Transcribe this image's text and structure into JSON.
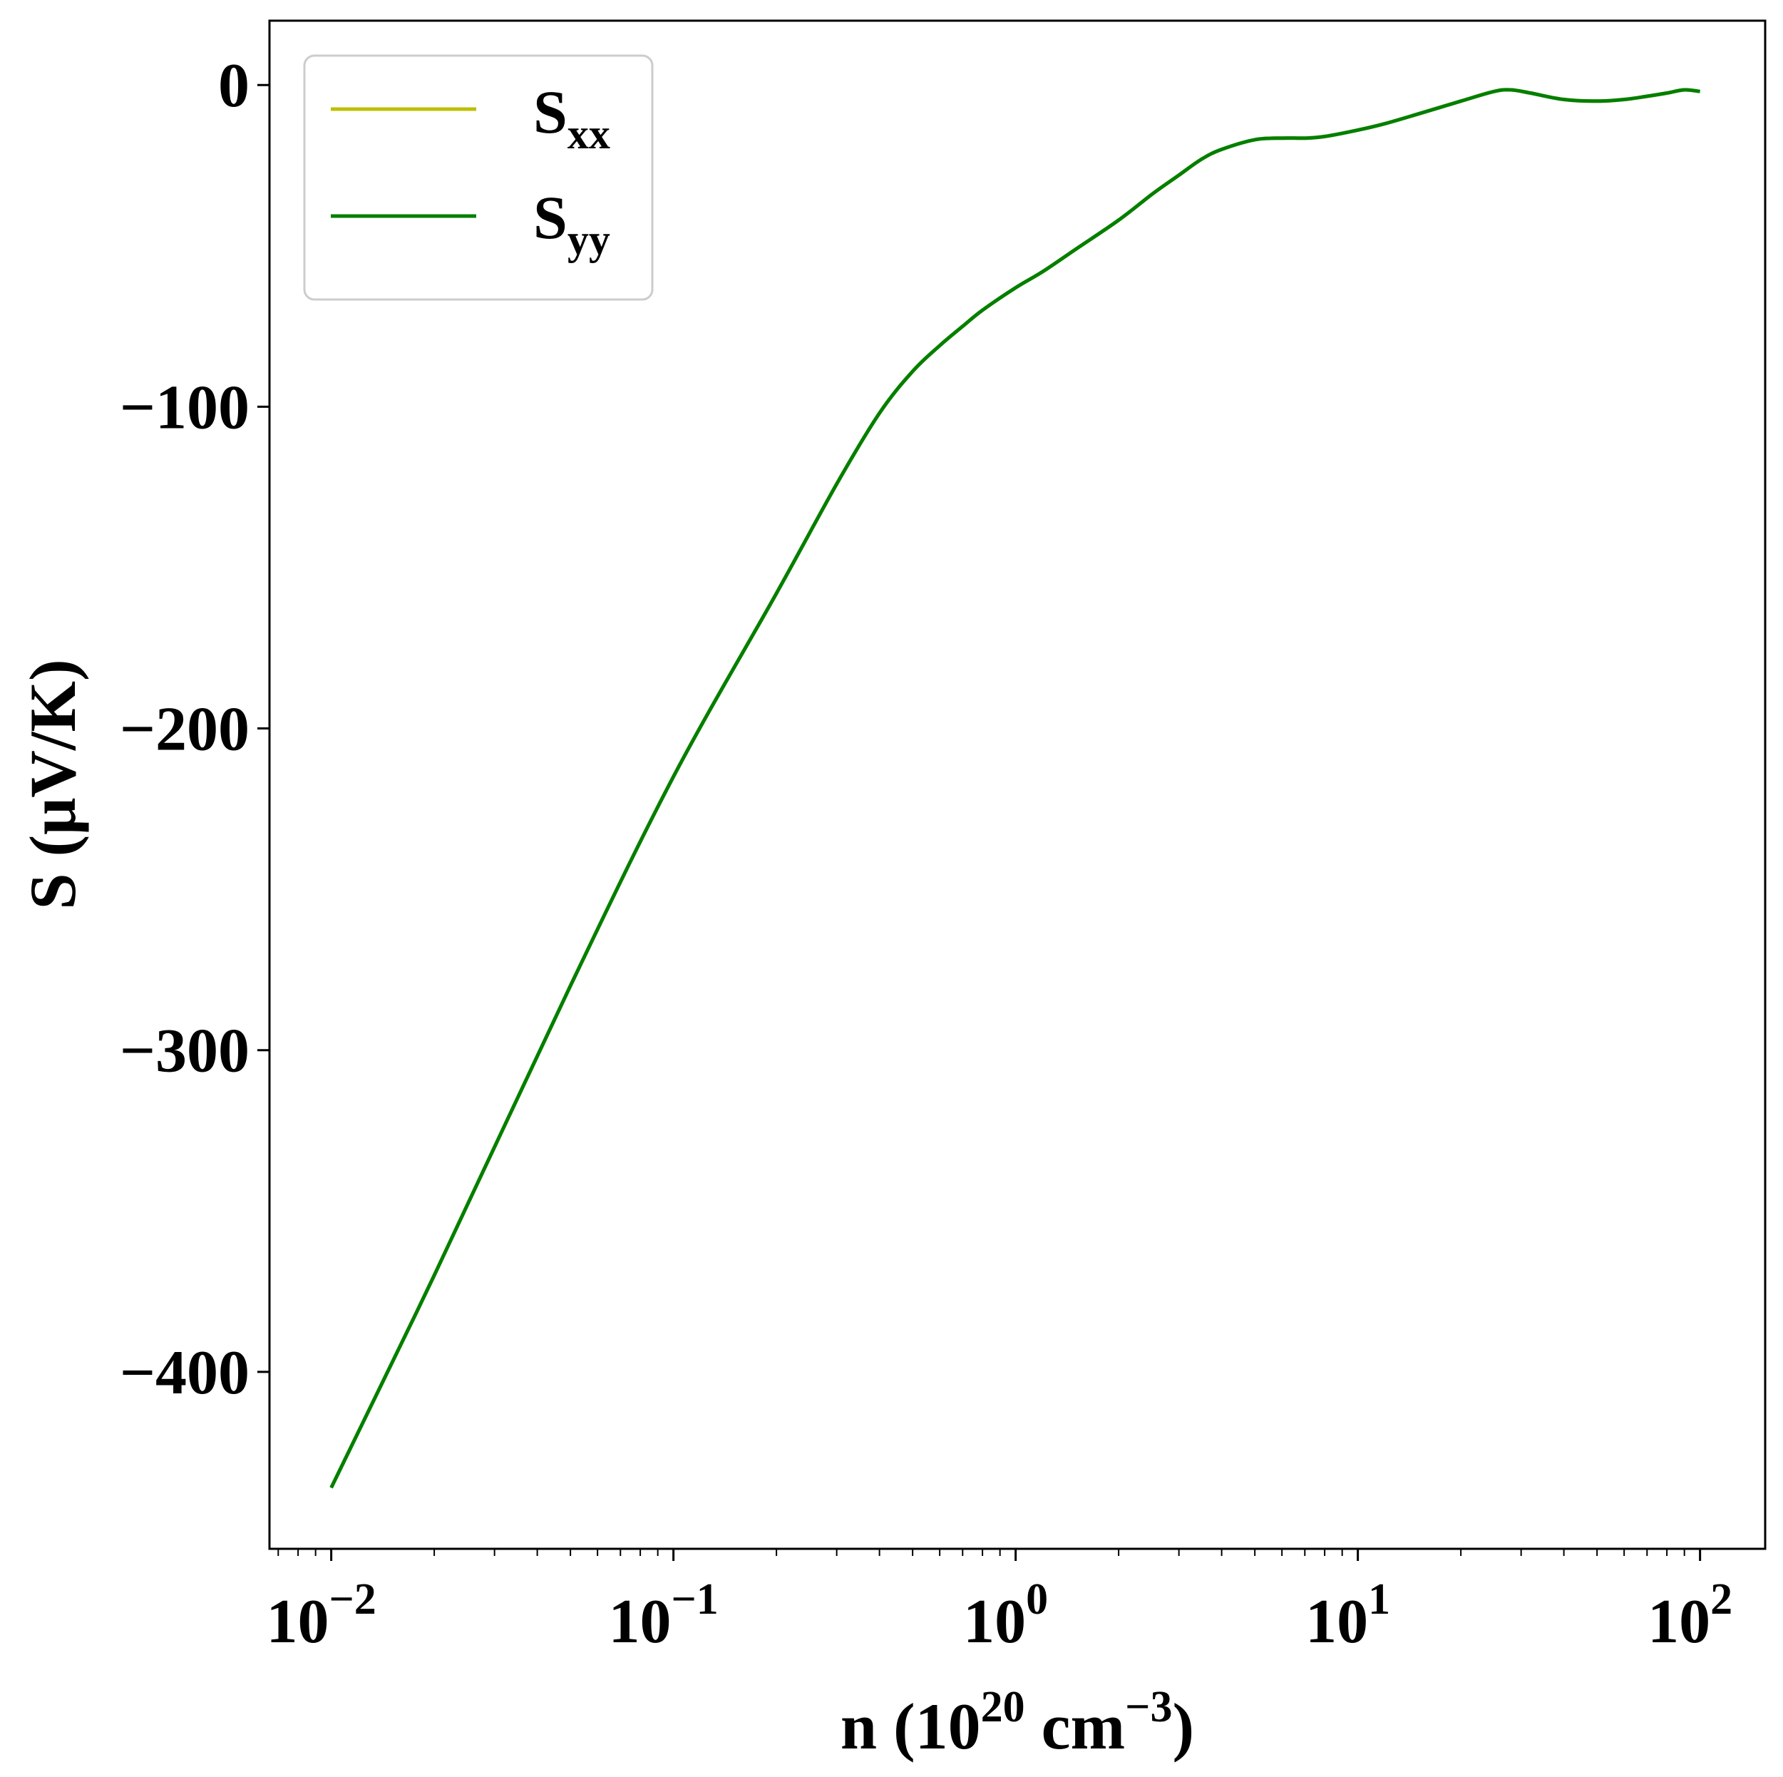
{
  "chart_data": {
    "type": "line",
    "xlabel": {
      "base": "n (10",
      "sup1": "20",
      "mid": " cm",
      "sup2": "−3",
      "tail": ")"
    },
    "ylabel": "S (μV/K)",
    "xscale": "log",
    "xlim": [
      0.0066,
      155
    ],
    "ylim": [
      -455,
      20
    ],
    "x_ticks": [
      {
        "value": 0.01,
        "base": "10",
        "exp": "−2"
      },
      {
        "value": 0.1,
        "base": "10",
        "exp": "−1"
      },
      {
        "value": 1,
        "base": "10",
        "exp": "0"
      },
      {
        "value": 10,
        "base": "10",
        "exp": "1"
      },
      {
        "value": 100,
        "base": "10",
        "exp": "2"
      }
    ],
    "y_ticks": [
      {
        "value": 0,
        "label": "0"
      },
      {
        "value": -100,
        "label": "−100"
      },
      {
        "value": -200,
        "label": "−200"
      },
      {
        "value": -300,
        "label": "−300"
      },
      {
        "value": -400,
        "label": "−400"
      }
    ],
    "grid": false,
    "legend": {
      "placement": "top-left"
    },
    "series": [
      {
        "name": "S",
        "sub": "xx",
        "color": "#bfbf00",
        "x": [
          0.01,
          0.02,
          0.05,
          0.1,
          0.2,
          0.3,
          0.4,
          0.5,
          0.6,
          0.7,
          0.8,
          1.0,
          1.2,
          1.5,
          2.0,
          2.5,
          3.0,
          3.5,
          4.0,
          5.0,
          6.0,
          7.0,
          8.0,
          10,
          12,
          15,
          20,
          25,
          28,
          32,
          40,
          50,
          60,
          70,
          80,
          90,
          100
        ],
        "y": [
          -436,
          -370,
          -280,
          -215,
          -158,
          -124,
          -102,
          -89,
          -81,
          -75,
          -70,
          -63,
          -58,
          -51,
          -42,
          -34,
          -28,
          -23,
          -20,
          -17,
          -16.5,
          -16.5,
          -16,
          -14,
          -12,
          -9,
          -5,
          -2,
          -1.5,
          -2.5,
          -4.5,
          -5,
          -4.5,
          -3.5,
          -2.5,
          -1.5,
          -2
        ]
      },
      {
        "name": "S",
        "sub": "yy",
        "color": "#007f00",
        "x": [
          0.01,
          0.02,
          0.05,
          0.1,
          0.2,
          0.3,
          0.4,
          0.5,
          0.6,
          0.7,
          0.8,
          1.0,
          1.2,
          1.5,
          2.0,
          2.5,
          3.0,
          3.5,
          4.0,
          5.0,
          6.0,
          7.0,
          8.0,
          10,
          12,
          15,
          20,
          25,
          28,
          32,
          40,
          50,
          60,
          70,
          80,
          90,
          100
        ],
        "y": [
          -436,
          -370,
          -280,
          -215,
          -158,
          -124,
          -102,
          -89,
          -81,
          -75,
          -70,
          -63,
          -58,
          -51,
          -42,
          -34,
          -28,
          -23,
          -20,
          -17,
          -16.5,
          -16.5,
          -16,
          -14,
          -12,
          -9,
          -5,
          -2,
          -1.5,
          -2.5,
          -4.5,
          -5,
          -4.5,
          -3.5,
          -2.5,
          -1.5,
          -2
        ]
      }
    ]
  }
}
